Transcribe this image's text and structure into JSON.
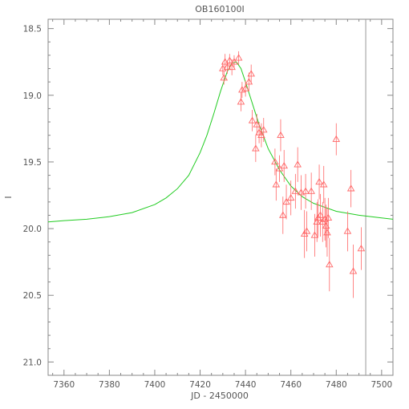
{
  "chart_data": {
    "type": "scatter",
    "title": "OB160100I",
    "xlabel": "JD - 2450000",
    "ylabel": "I",
    "xlim": [
      7353,
      7505
    ],
    "ylim": [
      21.1,
      18.43
    ],
    "y_inverted": true,
    "x_ticks": [
      7360,
      7380,
      7400,
      7420,
      7440,
      7460,
      7480,
      7500
    ],
    "x_tick_labels": [
      "7360",
      "7380",
      "7400",
      "7420",
      "7440",
      "7460",
      "7480",
      "7500"
    ],
    "y_ticks": [
      18.5,
      19.0,
      19.5,
      20.0,
      20.5,
      21.0
    ],
    "y_tick_labels": [
      "18.5",
      "19.0",
      "19.5",
      "20.0",
      "20.5",
      "21.0"
    ],
    "vertical_line_x": 7493,
    "grid": false,
    "legend": "none",
    "colors": {
      "points": "#ff6666",
      "model": "#22cc22",
      "axes": "#888888",
      "vline": "#999999"
    },
    "model_curve": {
      "name": "",
      "x": [
        7353,
        7360,
        7370,
        7380,
        7390,
        7400,
        7405,
        7410,
        7415,
        7420,
        7423,
        7426,
        7429,
        7432,
        7434,
        7436,
        7438,
        7440,
        7443,
        7446,
        7450,
        7455,
        7460,
        7465,
        7470,
        7480,
        7490,
        7500,
        7505
      ],
      "y": [
        19.95,
        19.94,
        19.93,
        19.91,
        19.88,
        19.82,
        19.77,
        19.7,
        19.6,
        19.43,
        19.3,
        19.14,
        18.97,
        18.82,
        18.76,
        18.75,
        18.8,
        18.9,
        19.06,
        19.22,
        19.4,
        19.56,
        19.68,
        19.76,
        19.81,
        19.87,
        19.9,
        19.92,
        19.93
      ]
    },
    "series": [
      {
        "name": "",
        "x": [
          7430,
          7430.5,
          7431,
          7432,
          7433,
          7434,
          7435,
          7437,
          7438,
          7438.5,
          7440,
          7441.5,
          7442.5,
          7443,
          7444.5,
          7445,
          7446,
          7447,
          7448,
          7453,
          7453.5,
          7455,
          7455.5,
          7456.5,
          7457,
          7458,
          7460,
          7462,
          7463,
          7464.5,
          7466,
          7466.5,
          7467,
          7469,
          7470.5,
          7471.5,
          7472,
          7472.5,
          7473,
          7474,
          7474.5,
          7475,
          7475.5,
          7476,
          7476.5,
          7477,
          7480,
          7485,
          7486.5,
          7487.5,
          7491
        ],
        "y": [
          18.8,
          18.87,
          18.75,
          18.79,
          18.74,
          18.79,
          18.75,
          18.72,
          19.05,
          18.96,
          18.95,
          18.9,
          18.84,
          19.19,
          19.4,
          19.22,
          19.28,
          19.3,
          19.26,
          19.5,
          19.67,
          19.55,
          19.3,
          19.9,
          19.53,
          19.8,
          19.77,
          19.72,
          19.52,
          19.73,
          20.04,
          19.72,
          20.02,
          19.72,
          20.05,
          19.95,
          19.92,
          19.65,
          19.9,
          19.95,
          19.67,
          19.93,
          19.98,
          20.03,
          19.92,
          20.27,
          19.33,
          20.02,
          19.7,
          20.32,
          20.15
        ],
        "err": [
          0.05,
          0.05,
          0.06,
          0.05,
          0.05,
          0.06,
          0.05,
          0.05,
          0.07,
          0.06,
          0.06,
          0.07,
          0.07,
          0.08,
          0.1,
          0.08,
          0.08,
          0.09,
          0.09,
          0.1,
          0.12,
          0.1,
          0.12,
          0.14,
          0.12,
          0.13,
          0.13,
          0.13,
          0.13,
          0.13,
          0.18,
          0.13,
          0.15,
          0.14,
          0.16,
          0.15,
          0.14,
          0.13,
          0.16,
          0.15,
          0.14,
          0.16,
          0.16,
          0.18,
          0.15,
          0.2,
          0.12,
          0.15,
          0.14,
          0.2,
          0.16
        ]
      }
    ]
  }
}
